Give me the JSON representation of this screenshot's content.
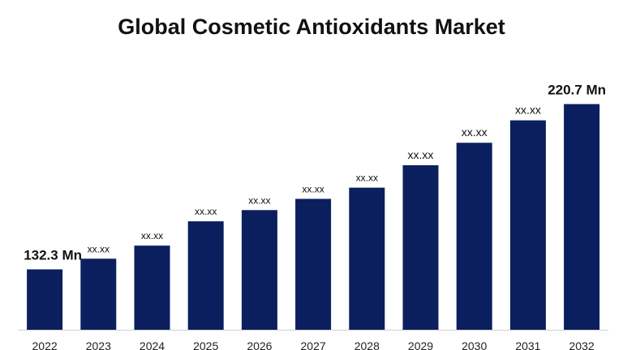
{
  "chart_data": {
    "type": "bar",
    "title": "Global Cosmetic Antioxidants Market",
    "xlabel": "",
    "ylabel": "",
    "categories": [
      "2022",
      "2023",
      "2024",
      "2025",
      "2026",
      "2027",
      "2028",
      "2029",
      "2030",
      "2031",
      "2032"
    ],
    "values": [
      132.3,
      138,
      145,
      158,
      164,
      170,
      176,
      188,
      200,
      212,
      220.7
    ],
    "data_labels": [
      "132.3 Mn",
      "xx.xx",
      "xx.xx",
      "xx.xx",
      "xx.xx",
      "xx.xx",
      "xx.xx",
      "xx.xx",
      "xx.xx",
      "xx.xx",
      "220.7 Mn"
    ],
    "ylim": [
      100,
      230
    ],
    "grid": false,
    "bar_color": "#0b1f5e"
  }
}
